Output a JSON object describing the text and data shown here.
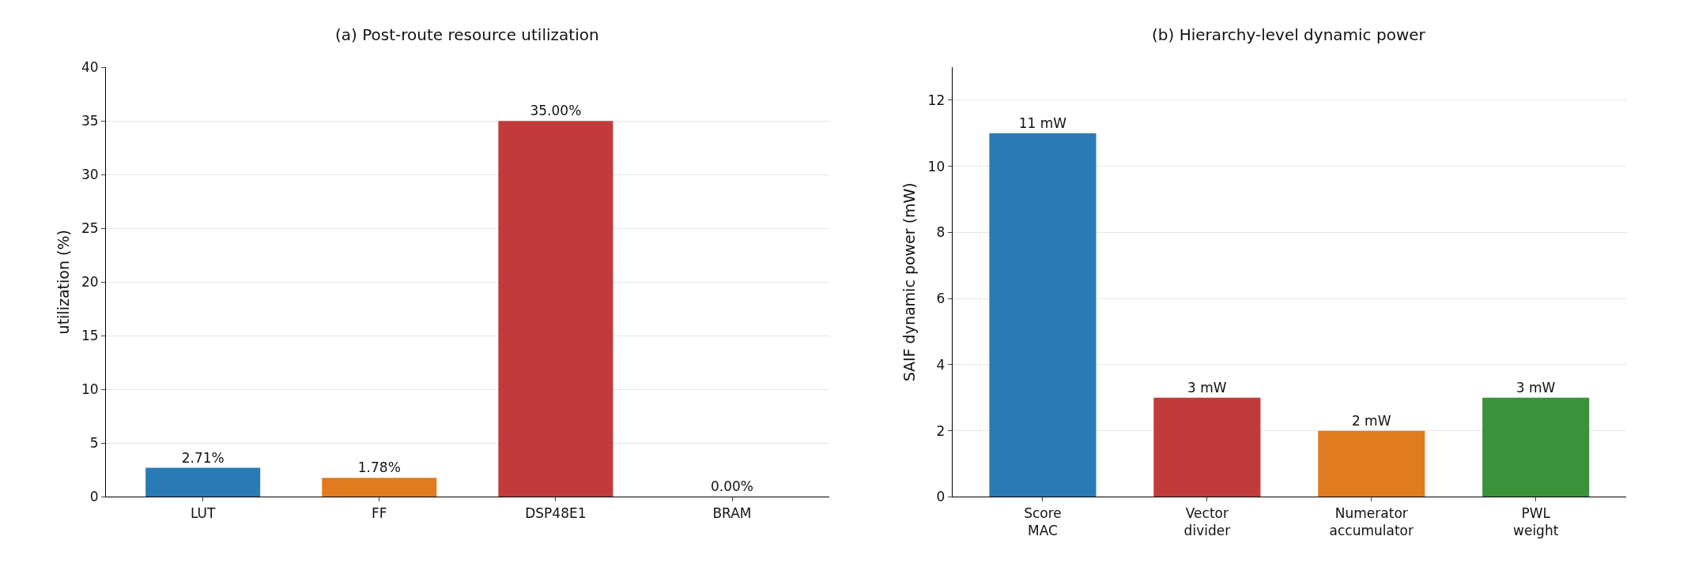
{
  "chart_data": [
    {
      "type": "bar",
      "title": "(a) Post-route resource utilization",
      "ylabel": "utilization (%)",
      "categories": [
        "LUT",
        "FF",
        "DSP48E1",
        "BRAM"
      ],
      "values": [
        2.71,
        1.78,
        35.0,
        0.0
      ],
      "colors": [
        "#2a7ab5",
        "#e07b20",
        "#c23b3b",
        "#3a923a"
      ],
      "value_labels": [
        "2.71%",
        "1.78%",
        "35.00%",
        "0.00%"
      ],
      "ylim": [
        0,
        40
      ],
      "yticks": [
        0,
        5,
        10,
        15,
        20,
        25,
        30,
        35,
        40
      ],
      "grid": "y"
    },
    {
      "type": "bar",
      "title": "(b) Hierarchy-level dynamic power",
      "ylabel": "SAIF dynamic power (mW)",
      "categories": [
        "Score\nMAC",
        "Vector\ndivider",
        "Numerator\naccumulator",
        "PWL\nweight"
      ],
      "values": [
        11,
        3,
        2,
        3
      ],
      "colors": [
        "#2a7ab5",
        "#c23b3b",
        "#e07b20",
        "#3a923a"
      ],
      "value_labels": [
        "11 mW",
        "3 mW",
        "2 mW",
        "3 mW"
      ],
      "ylim": [
        0,
        13
      ],
      "yticks": [
        0,
        2,
        4,
        6,
        8,
        10,
        12
      ],
      "grid": "y"
    }
  ]
}
